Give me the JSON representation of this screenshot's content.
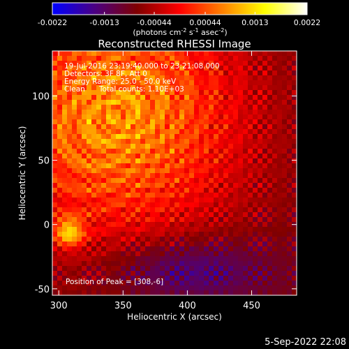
{
  "chart_data": {
    "type": "heatmap",
    "title": "Reconstructed RHESSI Image",
    "xlabel": "Heliocentric X (arcsec)",
    "ylabel": "Heliocentric Y (arcsec)",
    "xlim": [
      295,
      485
    ],
    "ylim": [
      -55,
      135
    ],
    "x_ticks": [
      300,
      350,
      400,
      450
    ],
    "y_ticks": [
      -50,
      0,
      50,
      100
    ],
    "colorbar": {
      "min": -0.0022,
      "max": 0.0022,
      "tick_values": [
        -0.0022,
        -0.0013,
        -0.00044,
        0.00044,
        0.0013,
        0.0022
      ],
      "tick_labels": [
        "-0.0022",
        "-0.0013",
        "-0.00044",
        "0.00044",
        "0.0013",
        "0.0022"
      ],
      "unit_label": "(photons cm",
      "unit_sup1": "-2",
      "unit_mid": " s",
      "unit_sup2": "-1",
      "unit_end": " asec",
      "unit_sup3": "-2",
      "unit_close": ")",
      "colors": [
        "#0000ff",
        "#4b0082",
        "#800000",
        "#ff0000",
        "#ff8000",
        "#ffff00",
        "#ffffff"
      ]
    },
    "annotations": [
      "19-Jul-2016 23:19:40.000 to 23:21:08.000",
      "Detectors: 3F 8F, Att 0",
      "Energy Range: 25.0 - 50.0 keV",
      "Clean      Total counts: 1.10E+03"
    ],
    "peak_annotation": "Position of Peak = [308,-6]",
    "peak": [
      308,
      -6
    ],
    "grid": false
  },
  "footer": {
    "date": "5-Sep-2022 22:08"
  }
}
